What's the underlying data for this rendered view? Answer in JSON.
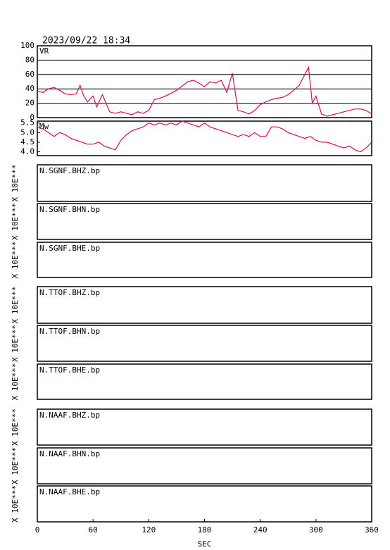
{
  "title": "2023/09/22 18:34",
  "chart_data": [
    {
      "type": "line",
      "xlim": [
        0,
        360
      ],
      "ylim": [
        0,
        100
      ],
      "yticks": [
        0,
        20,
        40,
        60,
        80,
        100
      ],
      "grid": true,
      "x": [
        0,
        6,
        12,
        18,
        24,
        30,
        36,
        42,
        46,
        50,
        54,
        60,
        64,
        70,
        74,
        78,
        84,
        90,
        96,
        102,
        108,
        114,
        120,
        126,
        132,
        138,
        144,
        150,
        156,
        162,
        168,
        174,
        180,
        186,
        192,
        198,
        204,
        210,
        216,
        222,
        228,
        234,
        240,
        246,
        252,
        258,
        264,
        270,
        276,
        282,
        288,
        292,
        296,
        300,
        306,
        312,
        318,
        324,
        330,
        336,
        342,
        348,
        354,
        360
      ],
      "series": [
        {
          "name": "VR",
          "color": "#d0104c",
          "values": [
            37,
            35,
            40,
            42,
            38,
            33,
            32,
            33,
            45,
            30,
            22,
            30,
            15,
            32,
            20,
            8,
            6,
            8,
            6,
            4,
            8,
            6,
            10,
            25,
            27,
            30,
            34,
            38,
            44,
            50,
            52,
            48,
            43,
            50,
            48,
            52,
            35,
            62,
            10,
            8,
            5,
            10,
            18,
            22,
            25,
            27,
            28,
            32,
            38,
            45,
            60,
            70,
            20,
            30,
            5,
            2,
            4,
            6,
            8,
            10,
            12,
            12,
            10,
            5
          ]
        }
      ]
    },
    {
      "type": "line",
      "xlim": [
        0,
        360
      ],
      "ylim": [
        3.8,
        5.6
      ],
      "yticks": [
        {
          "value": 4,
          "label": "4.0"
        },
        4.5,
        {
          "value": 5,
          "label": "5.0"
        },
        5.5
      ],
      "grid": false,
      "x": [
        0,
        6,
        12,
        18,
        24,
        30,
        36,
        42,
        48,
        54,
        60,
        66,
        72,
        78,
        84,
        90,
        96,
        102,
        108,
        114,
        120,
        126,
        132,
        138,
        144,
        150,
        156,
        162,
        168,
        174,
        180,
        186,
        192,
        198,
        204,
        210,
        216,
        222,
        228,
        234,
        240,
        246,
        252,
        258,
        264,
        270,
        276,
        282,
        288,
        294,
        300,
        306,
        312,
        318,
        324,
        330,
        336,
        342,
        348,
        354,
        360
      ],
      "series": [
        {
          "name": "Mw",
          "color": "#d0104c",
          "values": [
            5.3,
            5.2,
            5.0,
            4.8,
            5.0,
            4.9,
            4.7,
            4.6,
            4.5,
            4.4,
            4.4,
            4.5,
            4.3,
            4.2,
            4.1,
            4.6,
            4.9,
            5.1,
            5.2,
            5.3,
            5.5,
            5.4,
            5.5,
            5.4,
            5.5,
            5.4,
            5.6,
            5.5,
            5.4,
            5.3,
            5.5,
            5.3,
            5.2,
            5.1,
            5.0,
            4.9,
            4.8,
            4.9,
            4.8,
            5.0,
            4.8,
            4.8,
            5.3,
            5.3,
            5.2,
            5.0,
            4.9,
            4.8,
            4.7,
            4.8,
            4.6,
            4.5,
            4.5,
            4.4,
            4.3,
            4.2,
            4.3,
            4.1,
            4.0,
            4.2,
            4.5
          ]
        }
      ]
    }
  ],
  "traces": [
    {
      "name": "N.SGNF.BHZ.bp",
      "ylabel": "X 10E***"
    },
    {
      "name": "N.SGNF.BHN.bp",
      "ylabel": "X 10E***"
    },
    {
      "name": "N.SGNF.BHE.bp",
      "ylabel": "X 10E***"
    },
    {
      "name": "N.TTOF.BHZ.bp",
      "ylabel": "X 10E***"
    },
    {
      "name": "N.TTOF.BHN.bp",
      "ylabel": "X 10E***"
    },
    {
      "name": "N.TTOF.BHE.bp",
      "ylabel": "X 10E***"
    },
    {
      "name": "N.NAAF.BHZ.bp",
      "ylabel": "X 10E***"
    },
    {
      "name": "N.NAAF.BHN.bp",
      "ylabel": "X 10E***"
    },
    {
      "name": "N.NAAF.BHE.bp",
      "ylabel": "X 10E***"
    }
  ],
  "x_axis": {
    "xlim": [
      0,
      360
    ],
    "xticks": [
      0,
      60,
      120,
      180,
      240,
      300,
      360
    ],
    "xlabel": "SEC"
  }
}
